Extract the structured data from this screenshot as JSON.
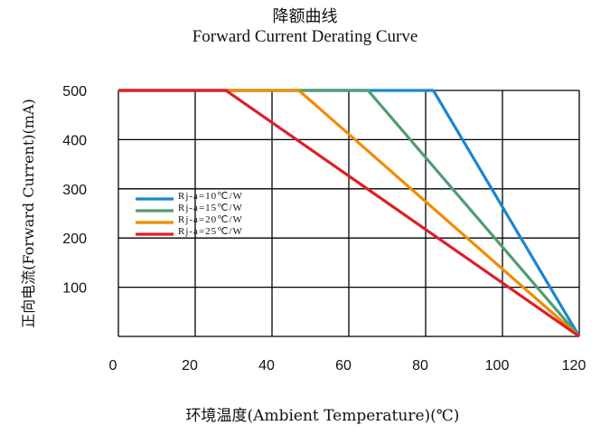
{
  "chart_data": {
    "type": "line",
    "title": "降额曲线",
    "subtitle": "Forward Current Derating Curve",
    "xlabel": "环境温度(Ambient Temperature)(℃)",
    "ylabel": "正向电流(Forward Current)(mA)",
    "xlim": [
      0,
      120
    ],
    "ylim": [
      0,
      500
    ],
    "xticks": [
      0,
      20,
      40,
      60,
      80,
      100,
      120
    ],
    "yticks": [
      100,
      200,
      300,
      400,
      500
    ],
    "grid": true,
    "legend_position": "left-middle",
    "series": [
      {
        "name": "Rj-a=10℃/W",
        "color": "#1a86d0",
        "x": [
          0,
          82,
          120
        ],
        "y": [
          500,
          500,
          0
        ]
      },
      {
        "name": "Rj-a=15℃/W",
        "color": "#4e9e70",
        "x": [
          0,
          65,
          120
        ],
        "y": [
          500,
          500,
          0
        ]
      },
      {
        "name": "Rj-a=20℃/W",
        "color": "#f08c00",
        "x": [
          0,
          47,
          120
        ],
        "y": [
          500,
          500,
          0
        ]
      },
      {
        "name": "Rj-a=25℃/W",
        "color": "#dd1f26",
        "x": [
          0,
          28,
          120
        ],
        "y": [
          500,
          500,
          0
        ]
      }
    ]
  }
}
